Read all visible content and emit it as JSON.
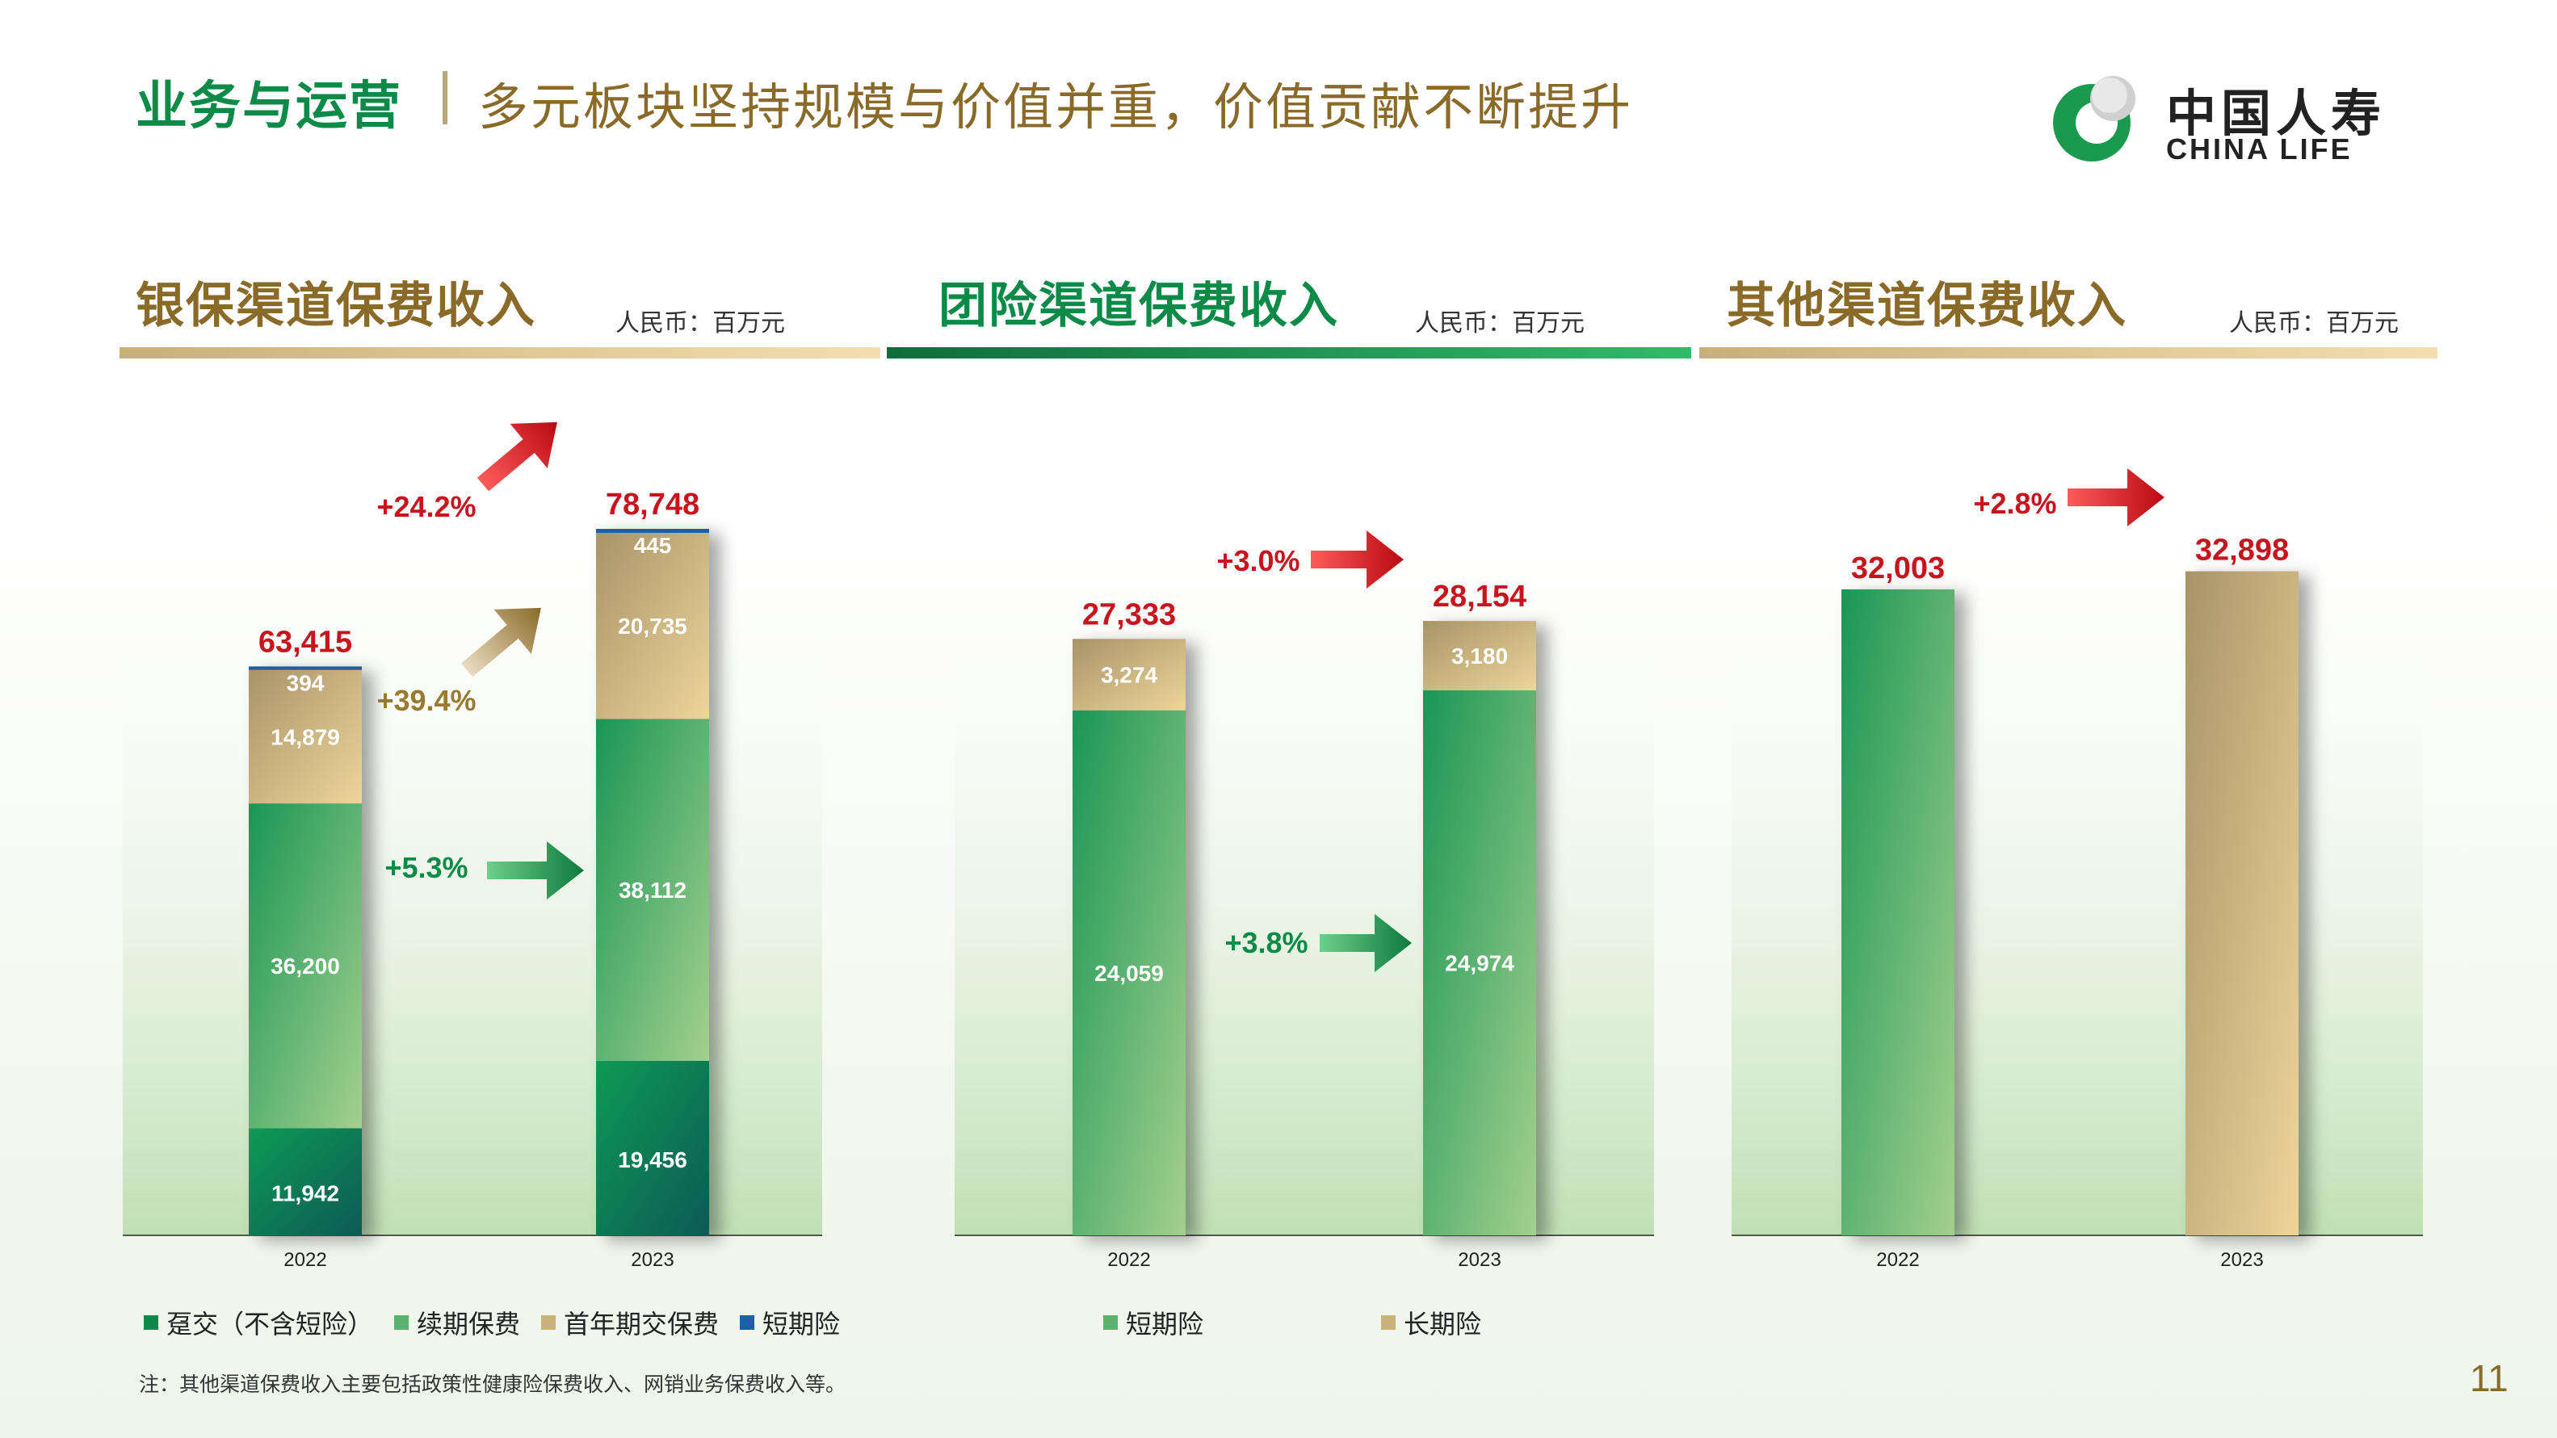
{
  "header": {
    "title": "业务与运营",
    "subtitle": "多元板块坚持规模与价值并重，价值贡献不断提升"
  },
  "logo": {
    "cn": "中国人寿",
    "en": "CHINA LIFE"
  },
  "colors": {
    "green_dark": "#0d8a48",
    "gold": "#8a6a28",
    "red": "#c8141e",
    "green_bar": "#5db36d",
    "gold_bar": "#c9b27c",
    "blue_bar": "#1f5fa8"
  },
  "chart_data": [
    {
      "type": "bar",
      "title": "银保渠道保费收入",
      "unit": "人民币：百万元",
      "stacked": true,
      "categories": [
        "2022",
        "2023"
      ],
      "series": [
        {
          "name": "趸交（不含短险）",
          "values": [
            11942,
            19456
          ]
        },
        {
          "name": "续期保费",
          "values": [
            36200,
            38112
          ]
        },
        {
          "name": "首年期交保费",
          "values": [
            14879,
            20735
          ]
        },
        {
          "name": "短期险",
          "values": [
            394,
            445
          ]
        }
      ],
      "totals": [
        63415,
        78748
      ],
      "totals_label": [
        "63,415",
        "78,748"
      ],
      "segment_labels": [
        [
          "11,942",
          "36,200",
          "14,879",
          "394"
        ],
        [
          "19,456",
          "38,112",
          "20,735",
          "445"
        ]
      ],
      "annotations": [
        {
          "text": "+24.2%",
          "color": "red"
        },
        {
          "text": "+39.4%",
          "color": "gold"
        },
        {
          "text": "+5.3%",
          "color": "green"
        }
      ],
      "ylim": [
        0,
        90000
      ]
    },
    {
      "type": "bar",
      "title": "团险渠道保费收入",
      "unit": "人民币：百万元",
      "stacked": true,
      "categories": [
        "2022",
        "2023"
      ],
      "series": [
        {
          "name": "短期险",
          "values": [
            24059,
            24974
          ]
        },
        {
          "name": "长期险",
          "values": [
            3274,
            3180
          ]
        }
      ],
      "totals": [
        27333,
        28154
      ],
      "totals_label": [
        "27,333",
        "28,154"
      ],
      "segment_labels": [
        [
          "24,059",
          "3,274"
        ],
        [
          "24,974",
          "3,180"
        ]
      ],
      "annotations": [
        {
          "text": "+3.0%",
          "color": "red"
        },
        {
          "text": "+3.8%",
          "color": "green"
        }
      ],
      "ylim": [
        0,
        37000
      ]
    },
    {
      "type": "bar",
      "title": "其他渠道保费收入",
      "unit": "人民币：百万元",
      "categories": [
        "2022",
        "2023"
      ],
      "values": [
        32003,
        32898
      ],
      "value_labels": [
        "32,003",
        "32,898"
      ],
      "annotations": [
        {
          "text": "+2.8%",
          "color": "red"
        }
      ],
      "ylim": [
        0,
        40000
      ]
    }
  ],
  "legends": {
    "bank": [
      "趸交（不含短险）",
      "续期保费",
      "首年期交保费",
      "短期险"
    ],
    "group": [
      "短期险",
      "长期险"
    ]
  },
  "footer": {
    "note": "注：其他渠道保费收入主要包括政策性健康险保费收入、网销业务保费收入等。",
    "page": "11"
  }
}
